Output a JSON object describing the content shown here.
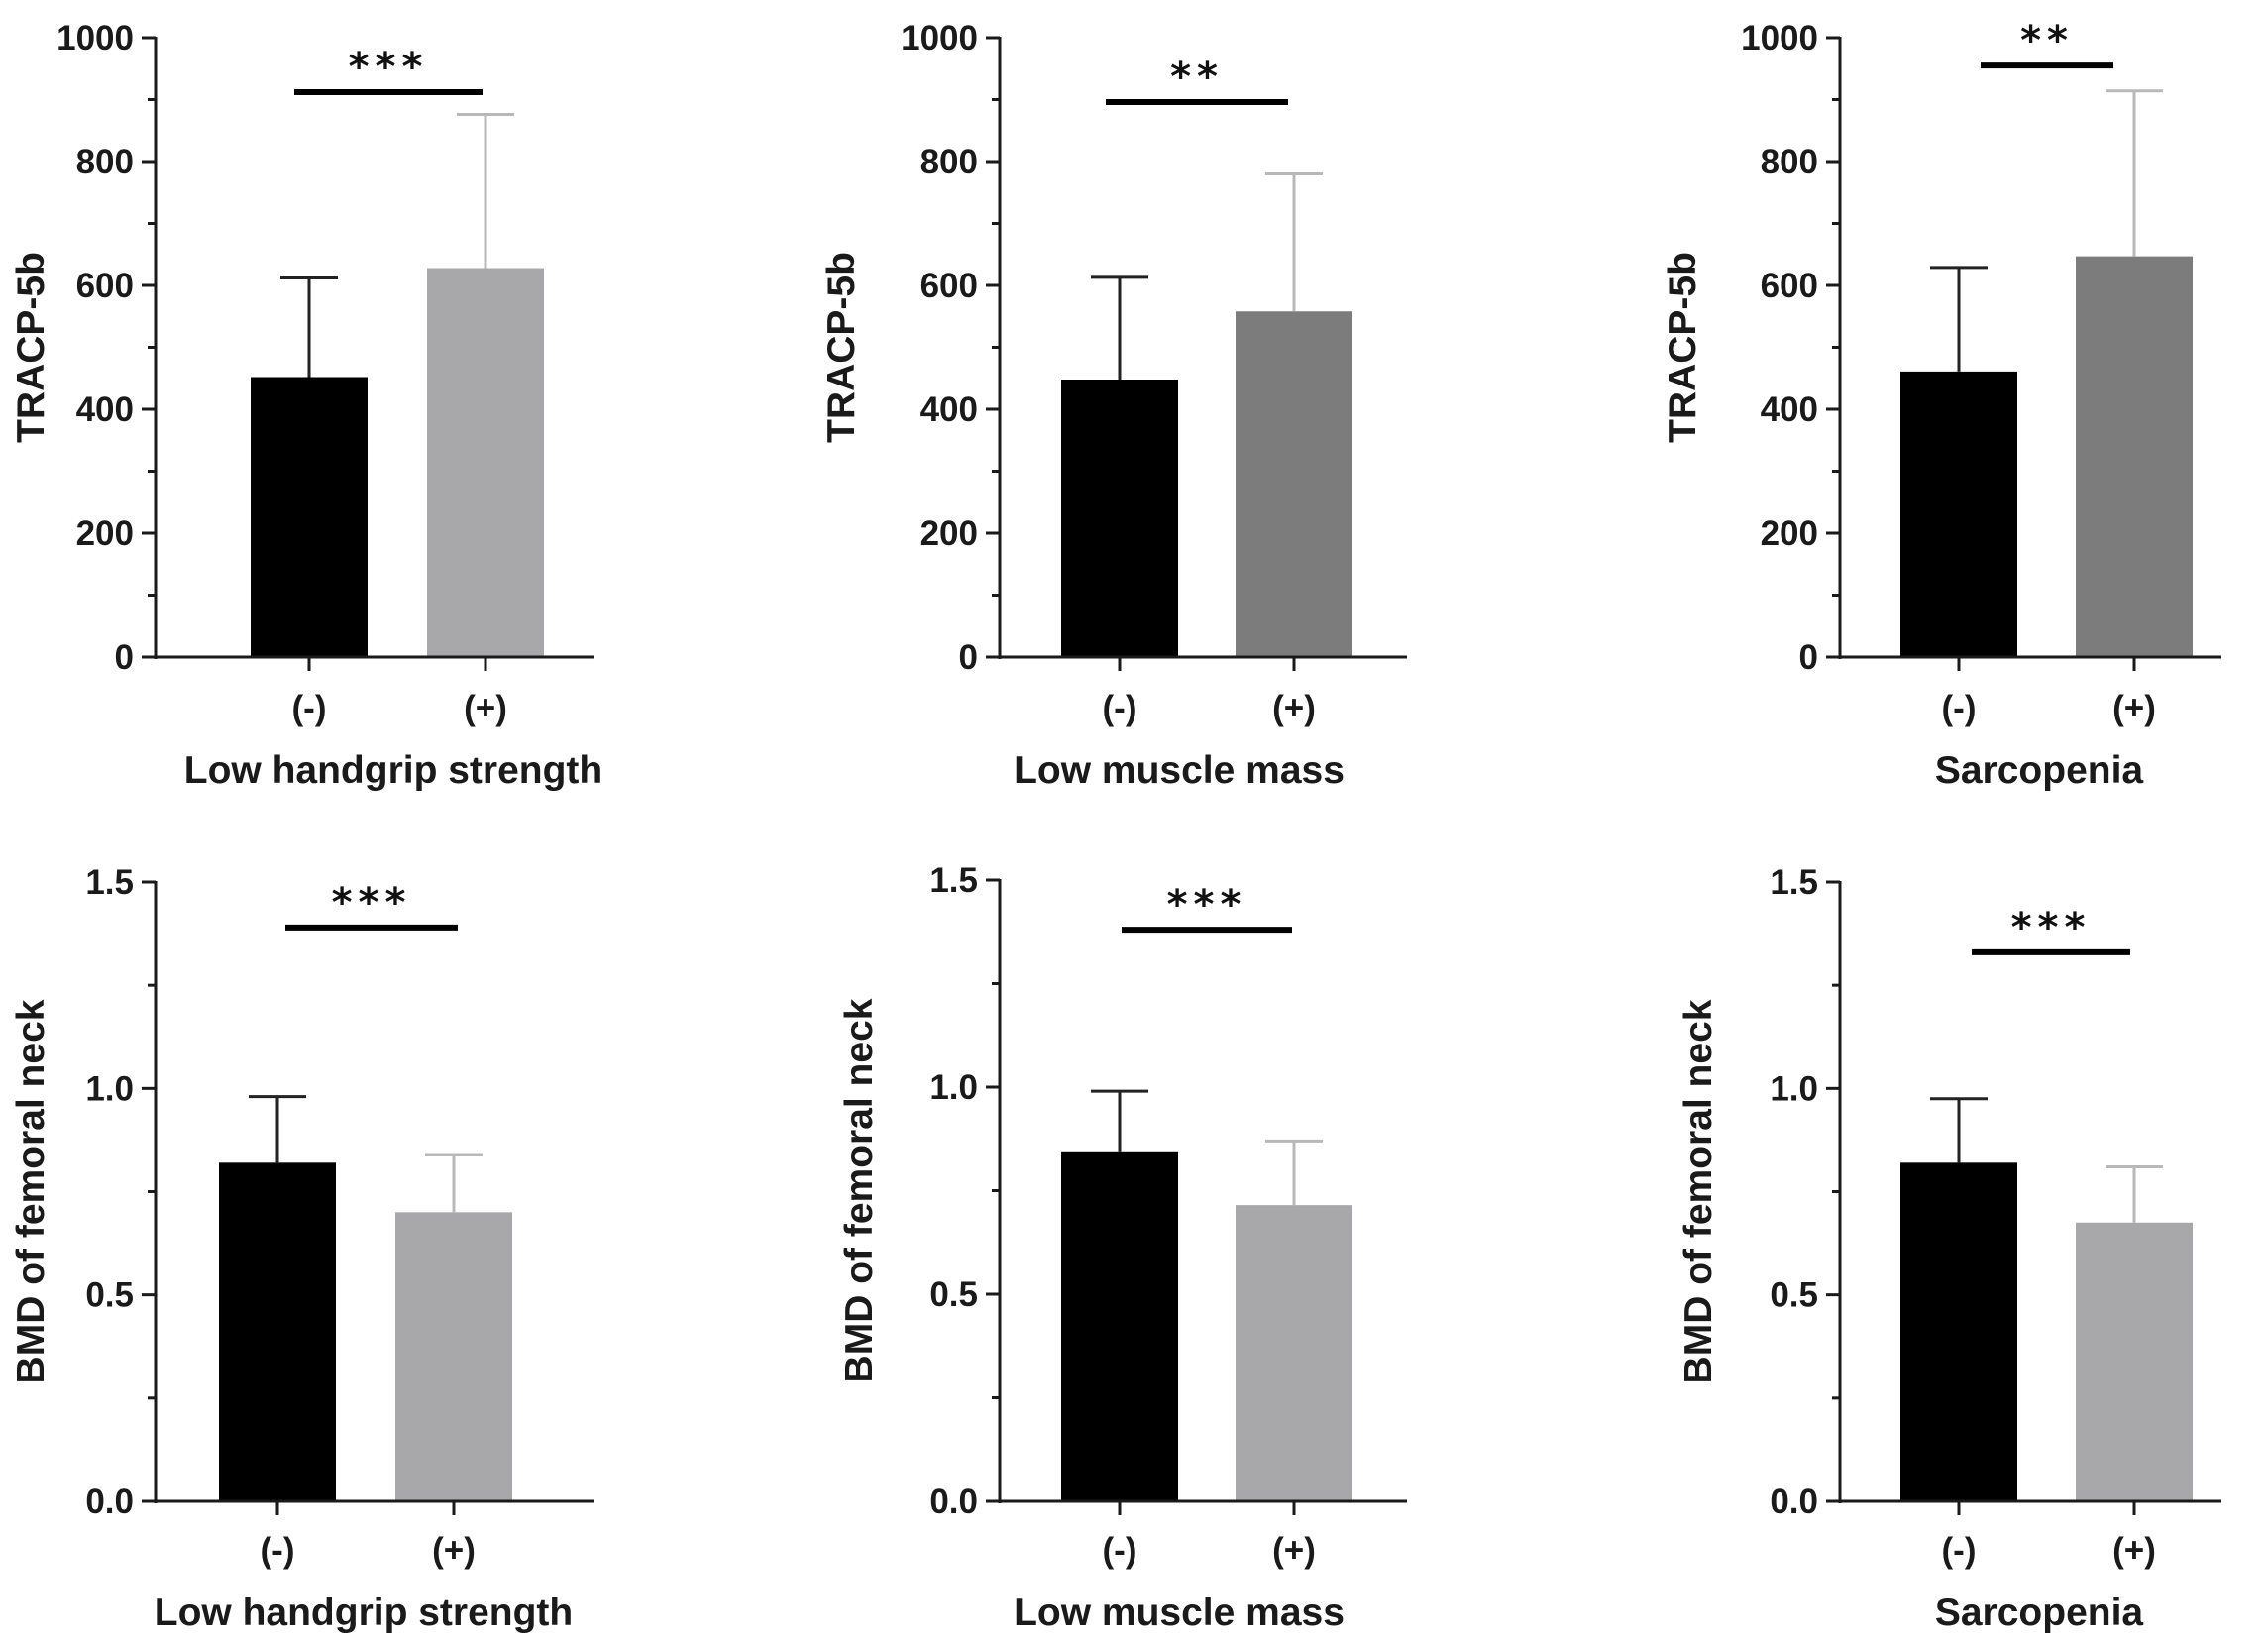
{
  "chart_data": [
    {
      "id": "tracp-handgrip",
      "type": "bar",
      "ylabel": "TRACP-5b",
      "xlabel": "Low handgrip strength",
      "categories": [
        "(-)",
        "(+)"
      ],
      "values": [
        452,
        628
      ],
      "errors": [
        160,
        248
      ],
      "colors": [
        "#000000",
        "#a8a8ab"
      ],
      "ylim": [
        0,
        1000
      ],
      "yticks": [
        "0",
        "200",
        "400",
        "600",
        "800",
        "1000"
      ],
      "significance": "***",
      "sig_level": 912
    },
    {
      "id": "tracp-muscle",
      "type": "bar",
      "ylabel": "TRACP-5b",
      "xlabel": "Low muscle mass",
      "categories": [
        "(-)",
        "(+)"
      ],
      "values": [
        448,
        558
      ],
      "errors": [
        165,
        222
      ],
      "colors": [
        "#000000",
        "#7c7c7c"
      ],
      "ylim": [
        0,
        1000
      ],
      "yticks": [
        "0",
        "200",
        "400",
        "600",
        "800",
        "1000"
      ],
      "significance": "**",
      "sig_level": 896
    },
    {
      "id": "tracp-sarcopenia",
      "type": "bar",
      "ylabel": "TRACP-5b",
      "xlabel": "Sarcopenia",
      "categories": [
        "(-)",
        "(+)"
      ],
      "values": [
        461,
        647
      ],
      "errors": [
        168,
        267
      ],
      "colors": [
        "#000000",
        "#7c7c7c"
      ],
      "ylim": [
        0,
        1000
      ],
      "yticks": [
        "0",
        "200",
        "400",
        "600",
        "800",
        "1000"
      ],
      "significance": "**",
      "sig_level": 955
    },
    {
      "id": "bmd-handgrip",
      "type": "bar",
      "ylabel": "BMD of femoral neck",
      "xlabel": "Low handgrip strength",
      "categories": [
        "(-)",
        "(+)"
      ],
      "values": [
        0.82,
        0.7
      ],
      "errors": [
        0.16,
        0.14
      ],
      "colors": [
        "#000000",
        "#a8a8ab"
      ],
      "ylim": [
        0,
        1.5
      ],
      "yticks": [
        "0.0",
        "0.5",
        "1.0",
        "1.5"
      ],
      "significance": "***",
      "sig_level": 1.39
    },
    {
      "id": "bmd-muscle",
      "type": "bar",
      "ylabel": "BMD of femoral neck",
      "xlabel": "Low muscle mass",
      "categories": [
        "(-)",
        "(+)"
      ],
      "values": [
        0.845,
        0.715
      ],
      "errors": [
        0.145,
        0.155
      ],
      "colors": [
        "#000000",
        "#a8a8ab"
      ],
      "ylim": [
        0,
        1.5
      ],
      "yticks": [
        "0.0",
        "0.5",
        "1.0",
        "1.5"
      ],
      "significance": "***",
      "sig_level": 1.38
    },
    {
      "id": "bmd-sarcopenia",
      "type": "bar",
      "ylabel": "BMD of femoral neck",
      "xlabel": "Sarcopenia",
      "categories": [
        "(-)",
        "(+)"
      ],
      "values": [
        0.82,
        0.675
      ],
      "errors": [
        0.155,
        0.135
      ],
      "colors": [
        "#000000",
        "#a8a8ab"
      ],
      "ylim": [
        0,
        1.5
      ],
      "yticks": [
        "0.0",
        "0.5",
        "1.0",
        "1.5"
      ],
      "significance": "***",
      "sig_level": 1.33
    }
  ]
}
